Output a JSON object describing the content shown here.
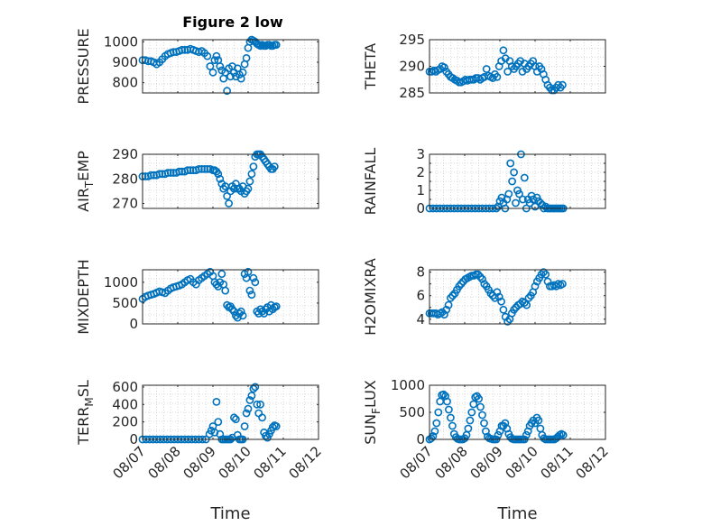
{
  "figure": {
    "title": "Figure 2 low",
    "marker_color": "#0072BD",
    "axis_color": "#262626",
    "grid": "dotted minor grid"
  },
  "chart_data": [
    {
      "type": "scatter",
      "name": "pressure",
      "col": 0,
      "row": 0,
      "ylabel": "PRESSURE",
      "ylim": [
        750,
        1010
      ],
      "yticks": [
        800,
        900,
        1000
      ],
      "ytick_labels": [
        "800",
        "900",
        "1000"
      ],
      "xlim": [
        0,
        5
      ],
      "xticks": [
        0,
        1,
        2,
        3,
        4,
        5
      ],
      "xtick_labels": [
        "08/07",
        "08/08",
        "08/09",
        "08/10",
        "08/11",
        "08/12"
      ],
      "xlabel": "",
      "title": "Figure 2 low",
      "x": [
        0.0,
        0.08,
        0.16,
        0.24,
        0.32,
        0.4,
        0.48,
        0.56,
        0.64,
        0.72,
        0.8,
        0.88,
        0.96,
        1.04,
        1.12,
        1.2,
        1.28,
        1.36,
        1.44,
        1.52,
        1.6,
        1.68,
        1.76,
        1.84,
        1.92,
        2.0,
        2.05,
        2.1,
        2.15,
        2.2,
        2.25,
        2.3,
        2.35,
        2.4,
        2.45,
        2.5,
        2.55,
        2.6,
        2.65,
        2.7,
        2.75,
        2.8,
        2.85,
        2.9,
        2.95,
        3.0,
        3.05,
        3.1,
        3.15,
        3.2,
        3.25,
        3.3,
        3.35,
        3.4,
        3.45,
        3.5,
        3.55,
        3.6,
        3.65,
        3.7,
        3.75,
        3.8
      ],
      "y": [
        910,
        910,
        905,
        905,
        900,
        890,
        900,
        915,
        930,
        940,
        945,
        950,
        950,
        955,
        960,
        960,
        960,
        965,
        960,
        955,
        950,
        955,
        945,
        930,
        880,
        850,
        910,
        930,
        910,
        880,
        860,
        820,
        850,
        760,
        870,
        830,
        880,
        850,
        830,
        870,
        840,
        820,
        850,
        890,
        920,
        970,
        1000,
        1010,
        1005,
        1000,
        990,
        985,
        980,
        985,
        980,
        980,
        985,
        985,
        980,
        980,
        985,
        985
      ]
    },
    {
      "type": "scatter",
      "name": "theta",
      "col": 1,
      "row": 0,
      "ylabel": "THETA",
      "ylim": [
        285,
        295
      ],
      "yticks": [
        285,
        290,
        295
      ],
      "ytick_labels": [
        "285",
        "290",
        "295"
      ],
      "xlim": [
        0,
        5
      ],
      "xticks": [
        0,
        1,
        2,
        3,
        4,
        5
      ],
      "xtick_labels": [
        "08/07",
        "08/08",
        "08/09",
        "08/10",
        "08/11",
        "08/12"
      ],
      "xlabel": "",
      "x": [
        0.0,
        0.06,
        0.12,
        0.18,
        0.24,
        0.3,
        0.36,
        0.42,
        0.48,
        0.54,
        0.6,
        0.66,
        0.72,
        0.78,
        0.84,
        0.9,
        0.96,
        1.02,
        1.08,
        1.14,
        1.2,
        1.26,
        1.32,
        1.38,
        1.44,
        1.5,
        1.56,
        1.62,
        1.68,
        1.74,
        1.8,
        1.86,
        1.92,
        1.98,
        2.04,
        2.1,
        2.16,
        2.22,
        2.28,
        2.34,
        2.4,
        2.46,
        2.52,
        2.58,
        2.64,
        2.7,
        2.76,
        2.82,
        2.88,
        2.94,
        3.0,
        3.06,
        3.12,
        3.18,
        3.24,
        3.3,
        3.36,
        3.42,
        3.48,
        3.54,
        3.6,
        3.66,
        3.72,
        3.78
      ],
      "y": [
        289.0,
        289.0,
        289.2,
        289.0,
        289.3,
        289.5,
        290.0,
        289.8,
        289.0,
        288.5,
        288.0,
        287.8,
        287.5,
        287.3,
        287.0,
        287.0,
        287.2,
        287.5,
        287.3,
        287.5,
        287.5,
        287.5,
        287.8,
        287.8,
        287.5,
        287.8,
        288.0,
        289.5,
        288.2,
        288.0,
        287.8,
        288.5,
        288.0,
        290.0,
        291.0,
        293.0,
        291.5,
        289.0,
        291.0,
        290.0,
        289.5,
        290.0,
        290.5,
        291.0,
        289.0,
        290.5,
        289.5,
        290.0,
        290.5,
        291.0,
        290.0,
        289.0,
        290.0,
        289.5,
        288.5,
        287.5,
        286.5,
        286.0,
        285.5,
        285.5,
        286.0,
        286.5,
        286.0,
        286.5
      ]
    },
    {
      "type": "scatter",
      "name": "air_temp",
      "col": 0,
      "row": 1,
      "ylabel": "AIR_TEMP",
      "ylabel_main": "AIR",
      "ylabel_sub": "T",
      "ylabel_rest": "EMP",
      "ylim": [
        268,
        290
      ],
      "yticks": [
        270,
        280,
        290
      ],
      "ytick_labels": [
        "270",
        "280",
        "290"
      ],
      "xlim": [
        0,
        5
      ],
      "xticks": [
        0,
        1,
        2,
        3,
        4,
        5
      ],
      "xtick_labels": [
        "08/07",
        "08/08",
        "08/09",
        "08/10",
        "08/11",
        "08/12"
      ],
      "xlabel": "",
      "x": [
        0.0,
        0.08,
        0.16,
        0.24,
        0.32,
        0.4,
        0.48,
        0.56,
        0.64,
        0.72,
        0.8,
        0.88,
        0.96,
        1.04,
        1.12,
        1.2,
        1.28,
        1.36,
        1.44,
        1.52,
        1.6,
        1.68,
        1.76,
        1.84,
        1.92,
        2.0,
        2.05,
        2.1,
        2.15,
        2.2,
        2.25,
        2.3,
        2.35,
        2.4,
        2.45,
        2.5,
        2.55,
        2.6,
        2.65,
        2.7,
        2.75,
        2.8,
        2.85,
        2.9,
        2.95,
        3.0,
        3.05,
        3.1,
        3.15,
        3.2,
        3.25,
        3.3,
        3.35,
        3.4,
        3.45,
        3.5,
        3.55,
        3.6,
        3.65,
        3.7,
        3.75
      ],
      "y": [
        281,
        281,
        281,
        281.5,
        281.5,
        281.5,
        282,
        282,
        282,
        282.5,
        282.5,
        282.5,
        282.5,
        283,
        283,
        283,
        283.5,
        283.5,
        283.5,
        283.5,
        284,
        284,
        284,
        284,
        284,
        283.5,
        283.5,
        283,
        282,
        280,
        278,
        276,
        277,
        273,
        270,
        275,
        277,
        276,
        278,
        276,
        276,
        275,
        277,
        274,
        275,
        276,
        279,
        282,
        285,
        289,
        290,
        290,
        290,
        289,
        288,
        287,
        286,
        285,
        284,
        284,
        285
      ]
    },
    {
      "type": "scatter",
      "name": "rainfall",
      "col": 1,
      "row": 1,
      "ylabel": "RAINFALL",
      "ylim": [
        0,
        3
      ],
      "yticks": [
        0,
        0.5,
        1,
        1.5,
        2,
        2.5,
        3
      ],
      "ytick_labels": [
        "0",
        "",
        "1",
        "",
        "2",
        "",
        "3"
      ],
      "xlim": [
        0,
        5
      ],
      "xticks": [
        0,
        1,
        2,
        3,
        4,
        5
      ],
      "xtick_labels": [
        "08/07",
        "08/08",
        "08/09",
        "08/10",
        "08/11",
        "08/12"
      ],
      "xlabel": "",
      "x": [
        0.0,
        0.1,
        0.2,
        0.3,
        0.4,
        0.5,
        0.6,
        0.7,
        0.8,
        0.9,
        1.0,
        1.1,
        1.2,
        1.3,
        1.4,
        1.5,
        1.6,
        1.7,
        1.8,
        1.9,
        1.95,
        2.0,
        2.05,
        2.1,
        2.15,
        2.2,
        2.25,
        2.3,
        2.35,
        2.4,
        2.45,
        2.5,
        2.55,
        2.6,
        2.65,
        2.7,
        2.75,
        2.8,
        2.85,
        2.9,
        2.95,
        3.0,
        3.05,
        3.1,
        3.15,
        3.2,
        3.25,
        3.3,
        3.35,
        3.4,
        3.45,
        3.5,
        3.55,
        3.6,
        3.65,
        3.7,
        3.75,
        3.8
      ],
      "y": [
        0,
        0,
        0,
        0,
        0,
        0,
        0,
        0,
        0,
        0,
        0,
        0,
        0,
        0,
        0,
        0,
        0,
        0,
        0,
        0,
        0.1,
        0.4,
        0.6,
        0.3,
        0,
        0.5,
        0.8,
        2.5,
        1.5,
        2.0,
        0.3,
        1.0,
        0.8,
        3.0,
        0.5,
        1.7,
        0,
        0.5,
        0.3,
        0.7,
        0.5,
        0.1,
        0.6,
        0.4,
        0.3,
        0.2,
        0,
        0.1,
        0,
        0,
        0,
        0,
        0,
        0,
        0,
        0,
        0,
        0
      ]
    },
    {
      "type": "scatter",
      "name": "mixdepth",
      "col": 0,
      "row": 2,
      "ylabel": "MIXDEPTH",
      "ylim": [
        0,
        1300
      ],
      "yticks": [
        0,
        500,
        1000
      ],
      "ytick_labels": [
        "0",
        "500",
        "1000"
      ],
      "xlim": [
        0,
        5
      ],
      "xticks": [
        0,
        1,
        2,
        3,
        4,
        5
      ],
      "xtick_labels": [
        "08/07",
        "08/08",
        "08/09",
        "08/10",
        "08/11",
        "08/12"
      ],
      "xlabel": "",
      "x": [
        0.0,
        0.08,
        0.16,
        0.24,
        0.32,
        0.4,
        0.48,
        0.56,
        0.64,
        0.72,
        0.8,
        0.88,
        0.96,
        1.04,
        1.12,
        1.2,
        1.28,
        1.36,
        1.44,
        1.52,
        1.6,
        1.68,
        1.76,
        1.84,
        1.92,
        2.0,
        2.05,
        2.1,
        2.15,
        2.2,
        2.25,
        2.3,
        2.35,
        2.4,
        2.45,
        2.5,
        2.55,
        2.6,
        2.65,
        2.7,
        2.75,
        2.8,
        2.85,
        2.9,
        2.95,
        3.0,
        3.05,
        3.1,
        3.15,
        3.2,
        3.25,
        3.3,
        3.35,
        3.4,
        3.45,
        3.5,
        3.55,
        3.6,
        3.65,
        3.7,
        3.75,
        3.8
      ],
      "y": [
        600,
        650,
        680,
        700,
        720,
        750,
        780,
        760,
        740,
        800,
        850,
        880,
        900,
        920,
        950,
        1000,
        1050,
        1080,
        1000,
        950,
        1050,
        1100,
        1150,
        1200,
        1250,
        1150,
        1000,
        950,
        900,
        1000,
        1200,
        950,
        800,
        450,
        400,
        420,
        350,
        300,
        200,
        150,
        250,
        300,
        200,
        1200,
        1100,
        1250,
        800,
        700,
        1100,
        1000,
        300,
        250,
        350,
        300,
        250,
        350,
        400,
        300,
        450,
        350,
        400,
        420
      ]
    },
    {
      "type": "scatter",
      "name": "h2omixra",
      "col": 1,
      "row": 2,
      "ylabel": "H2OMIXRA",
      "ylim": [
        3.6,
        8.2
      ],
      "yticks": [
        4,
        5,
        6,
        7,
        8
      ],
      "ytick_labels": [
        "4",
        "",
        "6",
        "",
        "8"
      ],
      "xlim": [
        0,
        5
      ],
      "xticks": [
        0,
        1,
        2,
        3,
        4,
        5
      ],
      "xtick_labels": [
        "08/07",
        "08/08",
        "08/09",
        "08/10",
        "08/11",
        "08/12"
      ],
      "xlabel": "",
      "x": [
        0.0,
        0.06,
        0.12,
        0.18,
        0.24,
        0.3,
        0.36,
        0.42,
        0.48,
        0.54,
        0.6,
        0.66,
        0.72,
        0.78,
        0.84,
        0.9,
        0.96,
        1.02,
        1.08,
        1.14,
        1.2,
        1.26,
        1.32,
        1.38,
        1.44,
        1.5,
        1.56,
        1.62,
        1.68,
        1.74,
        1.8,
        1.86,
        1.92,
        1.98,
        2.04,
        2.1,
        2.16,
        2.22,
        2.28,
        2.34,
        2.4,
        2.46,
        2.52,
        2.58,
        2.64,
        2.7,
        2.76,
        2.82,
        2.88,
        2.94,
        3.0,
        3.06,
        3.12,
        3.18,
        3.24,
        3.3,
        3.36,
        3.42,
        3.48,
        3.54,
        3.6,
        3.66,
        3.72,
        3.78
      ],
      "y": [
        4.5,
        4.5,
        4.5,
        4.5,
        4.4,
        4.5,
        4.6,
        4.4,
        4.8,
        5.2,
        5.8,
        6.0,
        6.2,
        6.5,
        6.8,
        7.0,
        7.2,
        7.4,
        7.5,
        7.6,
        7.7,
        7.7,
        7.8,
        7.8,
        7.6,
        7.4,
        7.0,
        6.8,
        6.5,
        6.2,
        6.0,
        5.8,
        6.3,
        5.9,
        5.5,
        4.8,
        4.2,
        3.8,
        4.0,
        4.5,
        4.8,
        5.0,
        5.2,
        5.3,
        5.5,
        5.4,
        5.2,
        5.8,
        6.0,
        6.3,
        6.8,
        7.2,
        7.5,
        7.8,
        8.0,
        7.8,
        7.2,
        6.8,
        6.8,
        6.9,
        6.8,
        7.0,
        6.9,
        7.0
      ]
    },
    {
      "type": "scatter",
      "name": "terr_msl",
      "col": 0,
      "row": 3,
      "ylabel": "TERR_MSL",
      "ylabel_main": "TERR",
      "ylabel_sub": "M",
      "ylabel_rest": "SL",
      "ylim": [
        0,
        620
      ],
      "yticks": [
        0,
        200,
        400,
        600
      ],
      "ytick_labels": [
        "0",
        "200",
        "400",
        "600"
      ],
      "xlim": [
        0,
        5
      ],
      "xticks": [
        0,
        1,
        2,
        3,
        4,
        5
      ],
      "xtick_labels": [
        "08/07",
        "08/08",
        "08/09",
        "08/10",
        "08/11",
        "08/12"
      ],
      "xlabel": "Time",
      "x": [
        0.0,
        0.1,
        0.2,
        0.3,
        0.4,
        0.5,
        0.6,
        0.7,
        0.8,
        0.9,
        1.0,
        1.1,
        1.2,
        1.3,
        1.4,
        1.5,
        1.6,
        1.7,
        1.8,
        1.9,
        1.95,
        2.0,
        2.05,
        2.1,
        2.15,
        2.2,
        2.25,
        2.3,
        2.35,
        2.4,
        2.45,
        2.5,
        2.55,
        2.6,
        2.65,
        2.7,
        2.75,
        2.8,
        2.85,
        2.9,
        2.95,
        3.0,
        3.05,
        3.1,
        3.15,
        3.2,
        3.25,
        3.3,
        3.35,
        3.4,
        3.45,
        3.5,
        3.55,
        3.6,
        3.65,
        3.7,
        3.75,
        3.8
      ],
      "y": [
        0,
        0,
        0,
        0,
        0,
        0,
        0,
        0,
        0,
        0,
        0,
        0,
        0,
        0,
        0,
        0,
        0,
        0,
        0,
        60,
        100,
        150,
        80,
        430,
        200,
        60,
        0,
        0,
        0,
        0,
        0,
        0,
        20,
        250,
        230,
        50,
        0,
        0,
        0,
        150,
        300,
        350,
        450,
        500,
        580,
        600,
        400,
        300,
        400,
        250,
        80,
        40,
        20,
        60,
        100,
        140,
        160,
        150
      ]
    },
    {
      "type": "scatter",
      "name": "sun_flux",
      "col": 1,
      "row": 3,
      "ylabel": "SUN_FLUX",
      "ylabel_main": "SUN",
      "ylabel_sub": "F",
      "ylabel_rest": "LUX",
      "ylim": [
        0,
        1000
      ],
      "yticks": [
        0,
        500,
        1000
      ],
      "ytick_labels": [
        "0",
        "500",
        "1000"
      ],
      "xlim": [
        0,
        5
      ],
      "xticks": [
        0,
        1,
        2,
        3,
        4,
        5
      ],
      "xtick_labels": [
        "08/07",
        "08/08",
        "08/09",
        "08/10",
        "08/11",
        "08/12"
      ],
      "xlabel": "Time",
      "x": [
        0.0,
        0.05,
        0.1,
        0.15,
        0.2,
        0.25,
        0.3,
        0.35,
        0.4,
        0.45,
        0.5,
        0.55,
        0.6,
        0.65,
        0.7,
        0.75,
        0.8,
        0.85,
        0.9,
        0.95,
        1.0,
        1.05,
        1.1,
        1.15,
        1.2,
        1.25,
        1.3,
        1.35,
        1.4,
        1.45,
        1.5,
        1.55,
        1.6,
        1.65,
        1.7,
        1.75,
        1.8,
        1.85,
        1.9,
        1.95,
        2.0,
        2.05,
        2.1,
        2.15,
        2.2,
        2.25,
        2.3,
        2.35,
        2.4,
        2.45,
        2.5,
        2.55,
        2.6,
        2.65,
        2.7,
        2.75,
        2.8,
        2.85,
        2.9,
        2.95,
        3.0,
        3.05,
        3.1,
        3.15,
        3.2,
        3.25,
        3.3,
        3.35,
        3.4,
        3.45,
        3.5,
        3.55,
        3.6,
        3.65,
        3.7,
        3.75,
        3.8
      ],
      "y": [
        0,
        20,
        60,
        150,
        300,
        500,
        700,
        820,
        830,
        800,
        700,
        550,
        400,
        250,
        100,
        40,
        10,
        0,
        0,
        0,
        20,
        80,
        200,
        350,
        500,
        650,
        780,
        800,
        750,
        600,
        450,
        300,
        150,
        50,
        20,
        10,
        0,
        0,
        0,
        80,
        150,
        250,
        250,
        300,
        200,
        100,
        40,
        10,
        0,
        0,
        0,
        0,
        0,
        0,
        0,
        80,
        150,
        250,
        300,
        350,
        300,
        400,
        350,
        200,
        80,
        20,
        0,
        0,
        0,
        0,
        0,
        0,
        20,
        50,
        80,
        100,
        80
      ]
    }
  ]
}
